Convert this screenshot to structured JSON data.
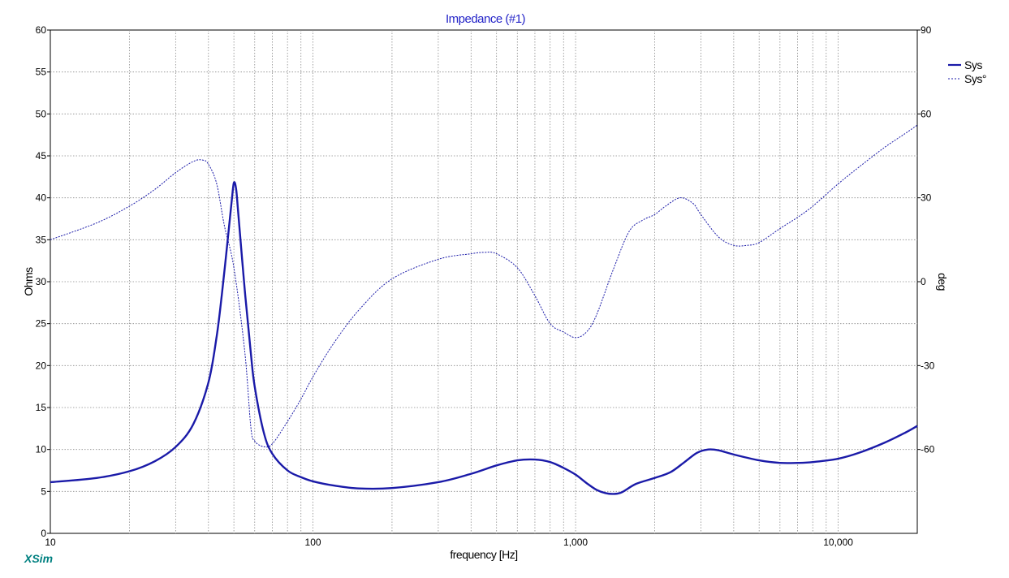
{
  "app": {
    "brand": "XSim"
  },
  "chart_data": {
    "type": "line",
    "title": "Impedance (#1)",
    "xlabel": "frequency [Hz]",
    "ylabel": "Ohms",
    "y2label": "deg",
    "xscale": "log",
    "xlim": [
      10,
      20000
    ],
    "ylim": [
      0,
      60
    ],
    "y2lim": [
      -90,
      90
    ],
    "grid": true,
    "legend_position": "top-right",
    "xticks": [
      {
        "value": 10,
        "label": "10"
      },
      {
        "value": 100,
        "label": "100"
      },
      {
        "value": 1000,
        "label": "1,000"
      },
      {
        "value": 10000,
        "label": "10,000"
      }
    ],
    "yticks": [
      0,
      5,
      10,
      15,
      20,
      25,
      30,
      35,
      40,
      45,
      50,
      55,
      60
    ],
    "y2ticks": [
      -60,
      -30,
      0,
      30,
      60,
      90
    ],
    "series": [
      {
        "name": "Sys",
        "axis": "left",
        "style": "solid",
        "color": "#1a1aa8",
        "x": [
          10,
          15,
          20,
          25,
          30,
          35,
          40,
          43,
          45,
          47,
          49,
          50,
          51,
          52,
          55,
          58,
          60,
          65,
          70,
          80,
          90,
          100,
          120,
          150,
          200,
          300,
          400,
          500,
          600,
          700,
          800,
          900,
          1000,
          1100,
          1200,
          1300,
          1400,
          1500,
          1700,
          2000,
          2300,
          2600,
          2900,
          3200,
          3500,
          4000,
          5000,
          6000,
          7000,
          8000,
          10000,
          12000,
          15000,
          18000,
          20000
        ],
        "values": [
          6.1,
          6.6,
          7.4,
          8.6,
          10.3,
          13.0,
          18.0,
          23.5,
          28.5,
          34.0,
          39.5,
          41.8,
          41.0,
          38.0,
          29.0,
          21.5,
          17.5,
          12.0,
          9.5,
          7.5,
          6.7,
          6.2,
          5.7,
          5.35,
          5.4,
          6.1,
          7.1,
          8.1,
          8.7,
          8.8,
          8.5,
          7.8,
          7.0,
          6.0,
          5.2,
          4.8,
          4.7,
          4.9,
          5.9,
          6.6,
          7.3,
          8.5,
          9.6,
          10.0,
          9.9,
          9.4,
          8.7,
          8.4,
          8.4,
          8.5,
          8.9,
          9.6,
          10.8,
          12.0,
          12.8
        ]
      },
      {
        "name": "Sys°",
        "axis": "right",
        "style": "dashed",
        "color": "#1a1aa8",
        "x": [
          10,
          15,
          20,
          25,
          30,
          35,
          38,
          40,
          43,
          46,
          50,
          55,
          58,
          60,
          65,
          70,
          80,
          90,
          100,
          120,
          150,
          200,
          300,
          400,
          450,
          500,
          600,
          700,
          800,
          900,
          1000,
          1100,
          1200,
          1400,
          1600,
          1800,
          2000,
          2200,
          2500,
          2800,
          3000,
          3500,
          4000,
          4500,
          5000,
          6000,
          7000,
          8000,
          10000,
          12000,
          15000,
          18000,
          20000
        ],
        "values": [
          15,
          21,
          27,
          33,
          39,
          43,
          43.5,
          42,
          35,
          20,
          5,
          -25,
          -52,
          -57,
          -59,
          -58,
          -50,
          -42,
          -34,
          -22,
          -10,
          1,
          8,
          10,
          10.5,
          10,
          5,
          -5,
          -15,
          -18,
          -20,
          -18,
          -12,
          5,
          18,
          22,
          24,
          27,
          30,
          28,
          24,
          16,
          13,
          13,
          14,
          19,
          23,
          27,
          35,
          41,
          48,
          53,
          56
        ]
      }
    ]
  }
}
